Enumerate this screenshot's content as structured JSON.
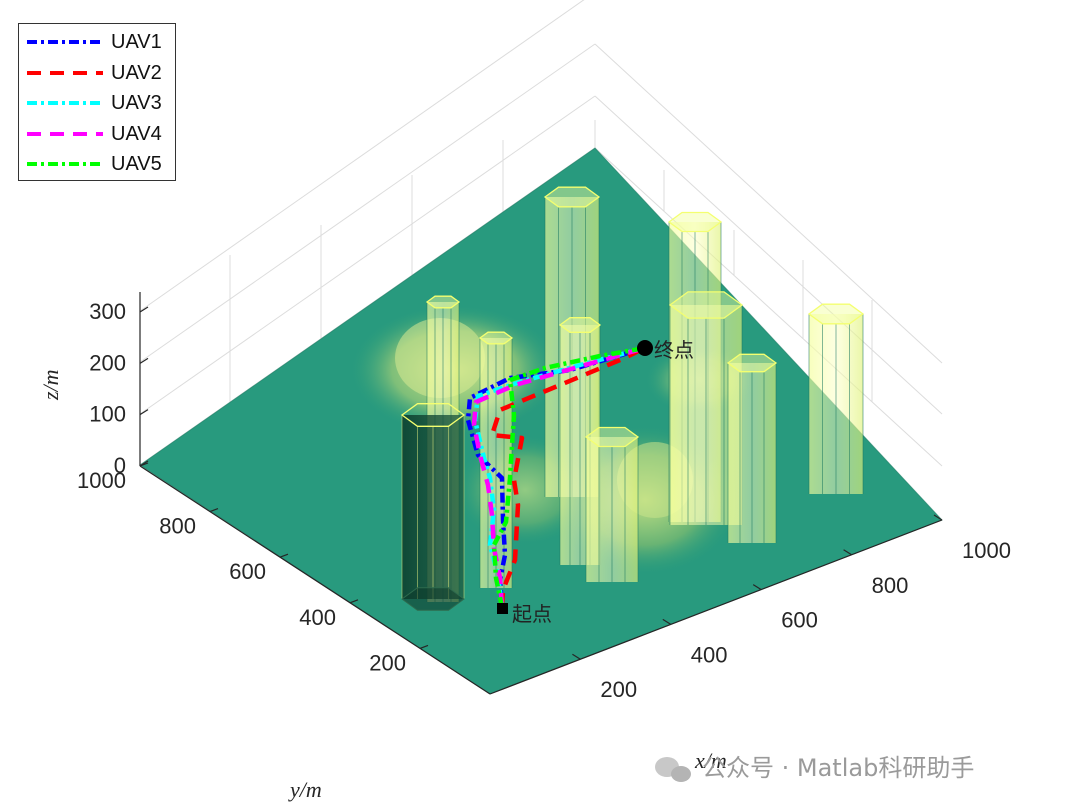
{
  "chart_data": {
    "type": "3d-surface-with-paths",
    "xlabel": "x/m",
    "ylabel": "y/m",
    "zlabel": "z/m",
    "xlim": [
      0,
      1000
    ],
    "ylim": [
      0,
      1000
    ],
    "zlim": [
      0,
      300
    ],
    "x_ticks": [
      "200",
      "400",
      "600",
      "800",
      "1000"
    ],
    "y_ticks": [
      "200",
      "400",
      "600",
      "800",
      "1000"
    ],
    "z_ticks": [
      "0",
      "100",
      "200",
      "300"
    ],
    "grid": true,
    "legend_position": "top-left",
    "colormap": "summer",
    "series": [
      {
        "name": "UAV1",
        "color": "#0000ff",
        "style": "dash-dot"
      },
      {
        "name": "UAV2",
        "color": "#ff0000",
        "style": "dashed"
      },
      {
        "name": "UAV3",
        "color": "#00ffff",
        "style": "dash-dot"
      },
      {
        "name": "UAV4",
        "color": "#ff00ff",
        "style": "dashed"
      },
      {
        "name": "UAV5",
        "color": "#00ff00",
        "style": "dash-dot"
      }
    ],
    "annotations": {
      "start": "起点",
      "end": "终点"
    }
  },
  "watermark": "公众号 · Matlab科研助手"
}
